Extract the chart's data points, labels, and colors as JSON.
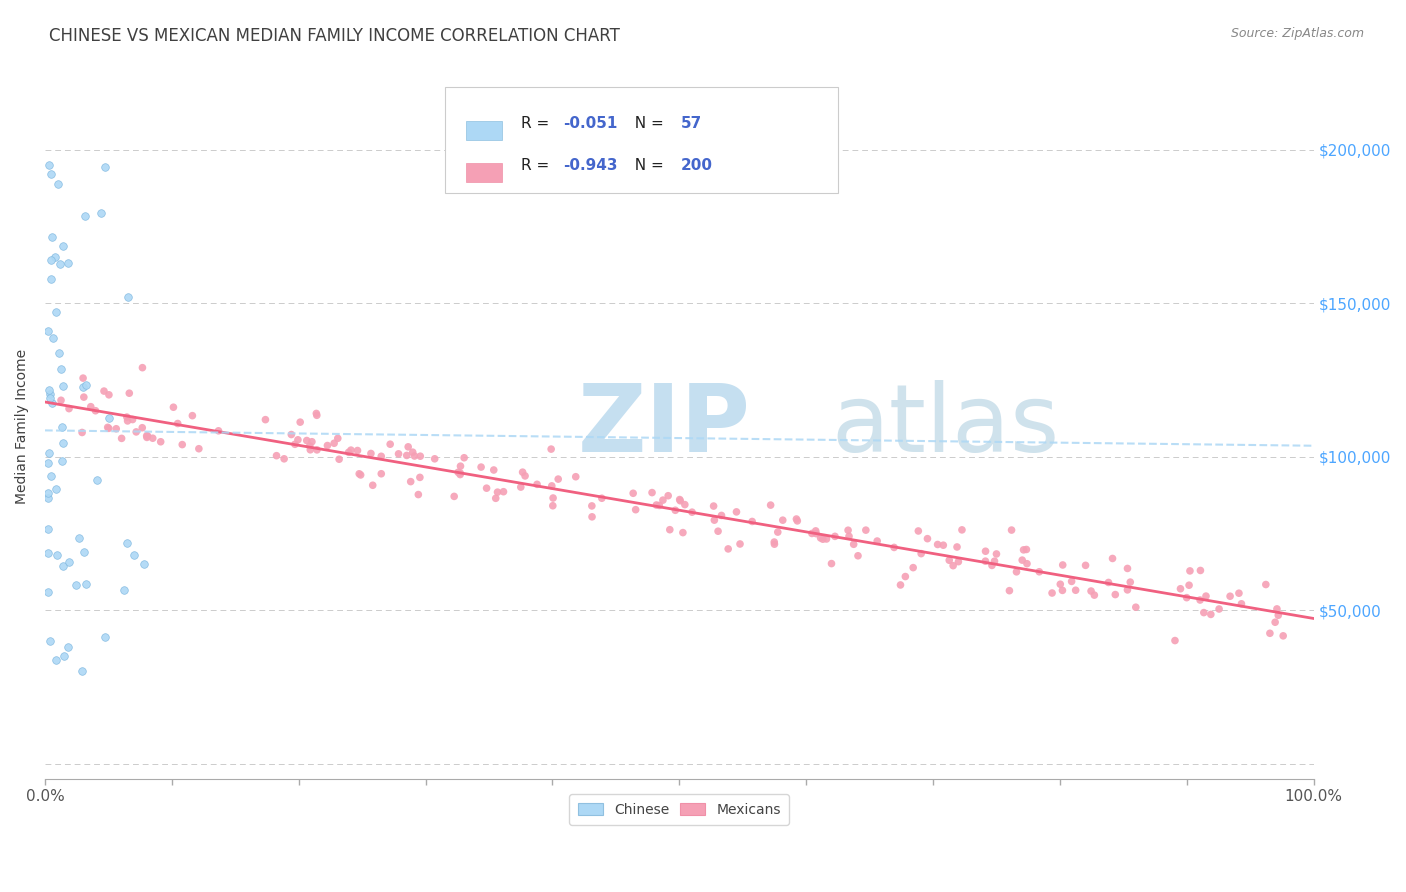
{
  "title": "CHINESE VS MEXICAN MEDIAN FAMILY INCOME CORRELATION CHART",
  "source": "Source: ZipAtlas.com",
  "ylabel": "Median Family Income",
  "xlim": [
    0.0,
    1.0
  ],
  "ylim": [
    -5000,
    225000
  ],
  "background_color": "#ffffff",
  "grid_color": "#cccccc",
  "chinese_color": "#add8f5",
  "mexican_color": "#f5a0b5",
  "chinese_trend_color": "#add8f5",
  "mexican_trend_color": "#f06080",
  "title_color": "#404040",
  "source_color": "#888888",
  "ylabel_color": "#404040",
  "right_tick_color": "#4da6ff",
  "legend_label_color": "#000000",
  "legend_value_color": "#4466cc",
  "r1": "-0.051",
  "n1": "57",
  "r2": "-0.943",
  "n2": "200"
}
